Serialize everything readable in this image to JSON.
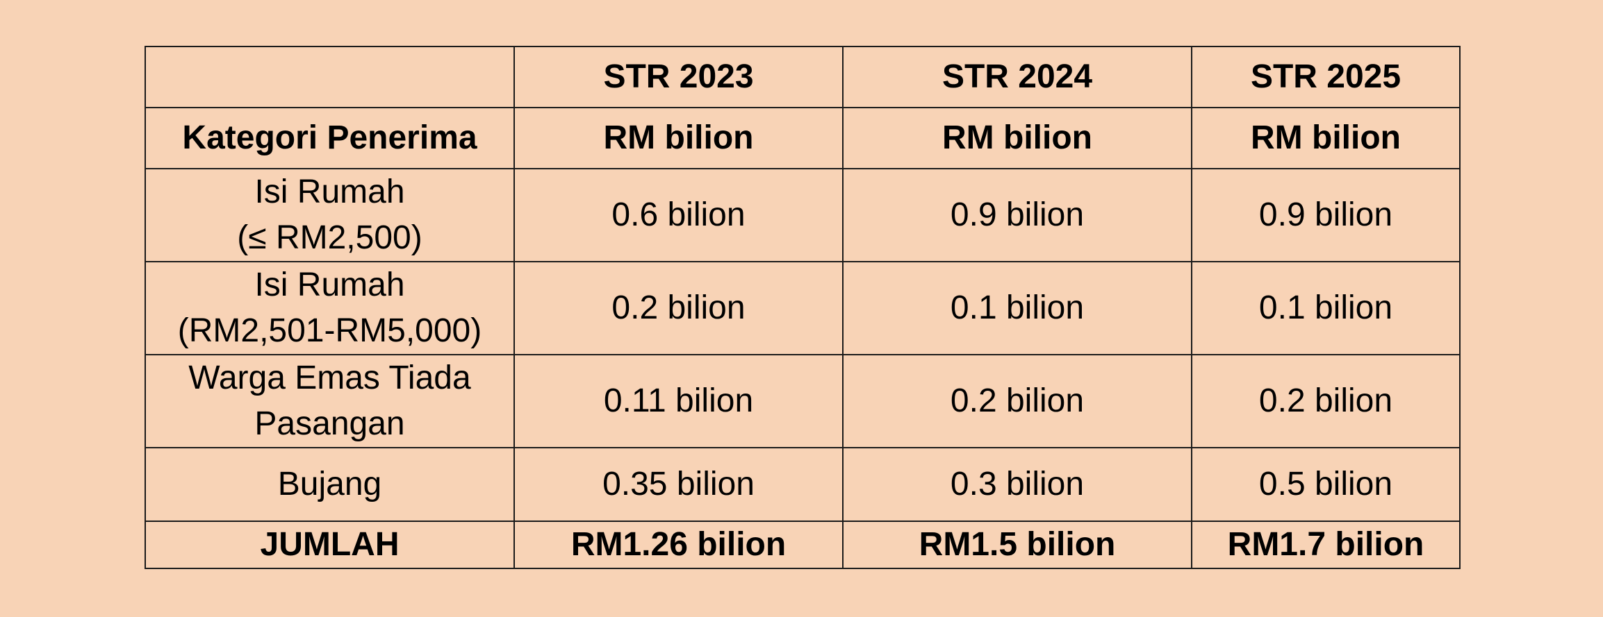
{
  "table": {
    "header_row_1": [
      "",
      "STR 2023",
      "STR 2024",
      "STR 2025"
    ],
    "header_row_2": [
      "Kategori Penerima",
      "RM bilion",
      "RM bilion",
      "RM bilion"
    ],
    "rows": [
      {
        "category_line1": "Isi Rumah",
        "category_line2": "(≤ RM2,500)",
        "values": [
          "0.6 bilion",
          "0.9 bilion",
          "0.9 bilion"
        ]
      },
      {
        "category_line1": "Isi Rumah",
        "category_line2": "(RM2,501-RM5,000)",
        "values": [
          "0.2 bilion",
          "0.1 bilion",
          "0.1 bilion"
        ]
      },
      {
        "category_line1": "Warga Emas Tiada",
        "category_line2": "Pasangan",
        "values": [
          "0.11 bilion",
          "0.2 bilion",
          "0.2 bilion"
        ]
      },
      {
        "category_line1": "Bujang",
        "category_line2": "",
        "values": [
          "0.35 bilion",
          "0.3 bilion",
          "0.5 bilion"
        ]
      }
    ],
    "total_row": [
      "JUMLAH",
      "RM1.26 bilion",
      "RM1.5 bilion",
      "RM1.7 bilion"
    ]
  }
}
